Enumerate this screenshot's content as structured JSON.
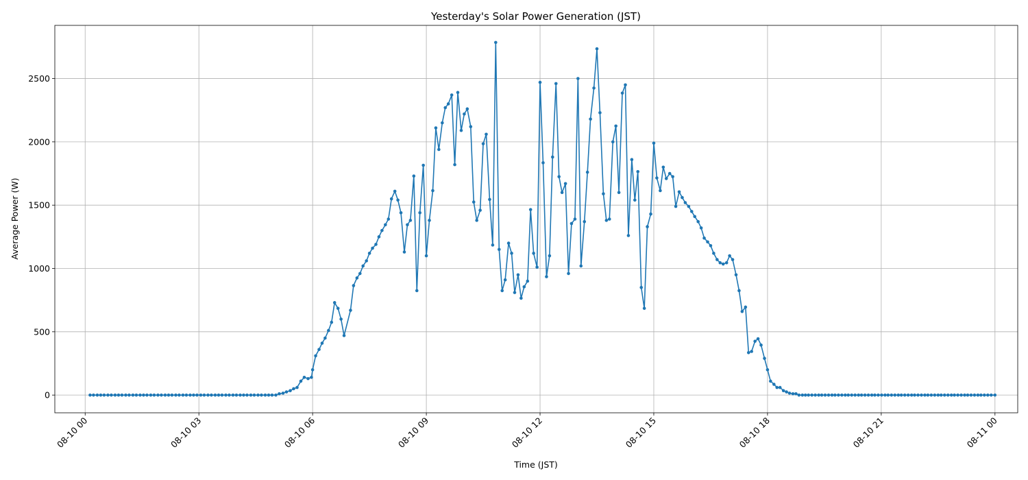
{
  "chart_data": {
    "type": "line",
    "title": "Yesterday's Solar Power Generation (JST)",
    "xlabel": "Time (JST)",
    "ylabel": "Average Power (W)",
    "grid": true,
    "legend": "none",
    "marker": "circle",
    "color": "#1f77b4",
    "x_unit": "hours since 08-10 00:00",
    "xlim": [
      -0.8,
      24.6
    ],
    "ylim": [
      -140,
      2920
    ],
    "x_ticks": [
      0,
      3,
      6,
      9,
      12,
      15,
      18,
      21,
      24
    ],
    "x_tick_labels": [
      "08-10 00",
      "08-10 03",
      "08-10 06",
      "08-10 09",
      "08-10 12",
      "08-10 15",
      "08-10 18",
      "08-10 21",
      "08-11 00"
    ],
    "y_ticks": [
      0,
      500,
      1000,
      1500,
      2000,
      2500
    ],
    "y_tick_labels": [
      "0",
      "500",
      "1000",
      "1500",
      "2000",
      "2500"
    ],
    "series": [
      {
        "name": "",
        "points": [
          [
            0.13,
            0
          ],
          [
            0.22,
            0
          ],
          [
            0.32,
            0
          ],
          [
            0.41,
            0
          ],
          [
            0.5,
            0
          ],
          [
            0.6,
            0
          ],
          [
            0.69,
            0
          ],
          [
            0.79,
            0
          ],
          [
            0.88,
            0
          ],
          [
            0.97,
            0
          ],
          [
            1.07,
            0
          ],
          [
            1.16,
            0
          ],
          [
            1.26,
            0
          ],
          [
            1.35,
            0
          ],
          [
            1.45,
            0
          ],
          [
            1.54,
            0
          ],
          [
            1.63,
            0
          ],
          [
            1.73,
            0
          ],
          [
            1.82,
            0
          ],
          [
            1.92,
            0
          ],
          [
            2.01,
            0
          ],
          [
            2.11,
            0
          ],
          [
            2.2,
            0
          ],
          [
            2.29,
            0
          ],
          [
            2.39,
            0
          ],
          [
            2.48,
            0
          ],
          [
            2.58,
            0
          ],
          [
            2.67,
            0
          ],
          [
            2.77,
            0
          ],
          [
            2.86,
            0
          ],
          [
            2.95,
            0
          ],
          [
            3.05,
            0
          ],
          [
            3.14,
            0
          ],
          [
            3.24,
            0
          ],
          [
            3.33,
            0
          ],
          [
            3.43,
            0
          ],
          [
            3.52,
            0
          ],
          [
            3.61,
            0
          ],
          [
            3.71,
            0
          ],
          [
            3.8,
            0
          ],
          [
            3.9,
            0
          ],
          [
            3.99,
            0
          ],
          [
            4.09,
            0
          ],
          [
            4.18,
            0
          ],
          [
            4.27,
            0
          ],
          [
            4.37,
            0
          ],
          [
            4.46,
            0
          ],
          [
            4.56,
            0
          ],
          [
            4.65,
            0
          ],
          [
            4.75,
            0
          ],
          [
            4.84,
            0
          ],
          [
            4.93,
            0
          ],
          [
            5.03,
            0
          ],
          [
            5.12,
            10
          ],
          [
            5.22,
            15
          ],
          [
            5.31,
            25
          ],
          [
            5.41,
            35
          ],
          [
            5.5,
            50
          ],
          [
            5.59,
            60
          ],
          [
            5.69,
            110
          ],
          [
            5.78,
            140
          ],
          [
            5.88,
            130
          ],
          [
            5.97,
            140
          ],
          [
            6.0,
            200
          ],
          [
            6.08,
            310
          ],
          [
            6.17,
            360
          ],
          [
            6.25,
            410
          ],
          [
            6.33,
            450
          ],
          [
            6.42,
            510
          ],
          [
            6.5,
            575
          ],
          [
            6.58,
            730
          ],
          [
            6.67,
            685
          ],
          [
            6.75,
            600
          ],
          [
            6.83,
            470
          ],
          [
            7.0,
            670
          ],
          [
            7.08,
            865
          ],
          [
            7.17,
            925
          ],
          [
            7.25,
            960
          ],
          [
            7.33,
            1020
          ],
          [
            7.42,
            1060
          ],
          [
            7.5,
            1120
          ],
          [
            7.58,
            1160
          ],
          [
            7.67,
            1190
          ],
          [
            7.75,
            1250
          ],
          [
            7.83,
            1300
          ],
          [
            7.92,
            1345
          ],
          [
            8.0,
            1390
          ],
          [
            8.08,
            1550
          ],
          [
            8.17,
            1610
          ],
          [
            8.25,
            1540
          ],
          [
            8.33,
            1440
          ],
          [
            8.42,
            1130
          ],
          [
            8.5,
            1345
          ],
          [
            8.58,
            1380
          ],
          [
            8.67,
            1730
          ],
          [
            8.75,
            825
          ],
          [
            8.83,
            1440
          ],
          [
            8.92,
            1815
          ],
          [
            9.0,
            1100
          ],
          [
            9.08,
            1380
          ],
          [
            9.17,
            1615
          ],
          [
            9.25,
            2110
          ],
          [
            9.33,
            1940
          ],
          [
            9.42,
            2150
          ],
          [
            9.5,
            2270
          ],
          [
            9.58,
            2300
          ],
          [
            9.67,
            2370
          ],
          [
            9.75,
            1820
          ],
          [
            9.83,
            2390
          ],
          [
            9.92,
            2090
          ],
          [
            10.0,
            2220
          ],
          [
            10.08,
            2260
          ],
          [
            10.17,
            2120
          ],
          [
            10.25,
            1525
          ],
          [
            10.33,
            1380
          ],
          [
            10.42,
            1460
          ],
          [
            10.5,
            1985
          ],
          [
            10.58,
            2060
          ],
          [
            10.67,
            1545
          ],
          [
            10.75,
            1185
          ],
          [
            10.83,
            2785
          ],
          [
            10.92,
            1150
          ],
          [
            11.0,
            825
          ],
          [
            11.08,
            910
          ],
          [
            11.17,
            1200
          ],
          [
            11.25,
            1120
          ],
          [
            11.33,
            810
          ],
          [
            11.42,
            950
          ],
          [
            11.5,
            765
          ],
          [
            11.58,
            855
          ],
          [
            11.67,
            900
          ],
          [
            11.75,
            1465
          ],
          [
            11.83,
            1120
          ],
          [
            11.92,
            1010
          ],
          [
            12.0,
            2470
          ],
          [
            12.08,
            1835
          ],
          [
            12.17,
            935
          ],
          [
            12.25,
            1100
          ],
          [
            12.33,
            1880
          ],
          [
            12.42,
            2460
          ],
          [
            12.5,
            1725
          ],
          [
            12.58,
            1600
          ],
          [
            12.67,
            1670
          ],
          [
            12.75,
            960
          ],
          [
            12.83,
            1355
          ],
          [
            12.92,
            1390
          ],
          [
            13.0,
            2500
          ],
          [
            13.08,
            1020
          ],
          [
            13.17,
            1370
          ],
          [
            13.25,
            1760
          ],
          [
            13.33,
            2180
          ],
          [
            13.42,
            2425
          ],
          [
            13.5,
            2735
          ],
          [
            13.58,
            2230
          ],
          [
            13.67,
            1590
          ],
          [
            13.75,
            1380
          ],
          [
            13.83,
            1390
          ],
          [
            13.92,
            2000
          ],
          [
            14.0,
            2125
          ],
          [
            14.08,
            1600
          ],
          [
            14.17,
            2385
          ],
          [
            14.25,
            2450
          ],
          [
            14.33,
            1260
          ],
          [
            14.42,
            1860
          ],
          [
            14.5,
            1540
          ],
          [
            14.58,
            1765
          ],
          [
            14.67,
            850
          ],
          [
            14.75,
            685
          ],
          [
            14.83,
            1330
          ],
          [
            14.92,
            1430
          ],
          [
            15.0,
            1990
          ],
          [
            15.08,
            1715
          ],
          [
            15.17,
            1615
          ],
          [
            15.25,
            1800
          ],
          [
            15.33,
            1710
          ],
          [
            15.42,
            1750
          ],
          [
            15.5,
            1725
          ],
          [
            15.58,
            1490
          ],
          [
            15.67,
            1605
          ],
          [
            15.75,
            1560
          ],
          [
            15.83,
            1520
          ],
          [
            15.92,
            1490
          ],
          [
            16.0,
            1450
          ],
          [
            16.08,
            1410
          ],
          [
            16.17,
            1370
          ],
          [
            16.25,
            1320
          ],
          [
            16.33,
            1240
          ],
          [
            16.42,
            1210
          ],
          [
            16.5,
            1180
          ],
          [
            16.58,
            1120
          ],
          [
            16.67,
            1070
          ],
          [
            16.75,
            1045
          ],
          [
            16.83,
            1035
          ],
          [
            16.92,
            1045
          ],
          [
            17.0,
            1100
          ],
          [
            17.08,
            1070
          ],
          [
            17.17,
            950
          ],
          [
            17.25,
            825
          ],
          [
            17.33,
            660
          ],
          [
            17.42,
            695
          ],
          [
            17.5,
            335
          ],
          [
            17.58,
            345
          ],
          [
            17.67,
            425
          ],
          [
            17.75,
            445
          ],
          [
            17.83,
            395
          ],
          [
            17.92,
            290
          ],
          [
            18.0,
            200
          ],
          [
            18.08,
            110
          ],
          [
            18.17,
            85
          ],
          [
            18.25,
            60
          ],
          [
            18.33,
            60
          ],
          [
            18.42,
            35
          ],
          [
            18.5,
            25
          ],
          [
            18.58,
            15
          ],
          [
            18.67,
            10
          ],
          [
            18.75,
            10
          ],
          [
            18.83,
            0
          ],
          [
            18.92,
            0
          ],
          [
            19.0,
            0
          ],
          [
            19.08,
            0
          ],
          [
            19.17,
            0
          ],
          [
            19.26,
            0
          ],
          [
            19.35,
            0
          ],
          [
            19.43,
            0
          ],
          [
            19.52,
            0
          ],
          [
            19.61,
            0
          ],
          [
            19.7,
            0
          ],
          [
            19.78,
            0
          ],
          [
            19.87,
            0
          ],
          [
            19.96,
            0
          ],
          [
            20.05,
            0
          ],
          [
            20.13,
            0
          ],
          [
            20.22,
            0
          ],
          [
            20.31,
            0
          ],
          [
            20.4,
            0
          ],
          [
            20.48,
            0
          ],
          [
            20.57,
            0
          ],
          [
            20.66,
            0
          ],
          [
            20.75,
            0
          ],
          [
            20.83,
            0
          ],
          [
            20.92,
            0
          ],
          [
            21.01,
            0
          ],
          [
            21.1,
            0
          ],
          [
            21.18,
            0
          ],
          [
            21.27,
            0
          ],
          [
            21.36,
            0
          ],
          [
            21.45,
            0
          ],
          [
            21.53,
            0
          ],
          [
            21.62,
            0
          ],
          [
            21.71,
            0
          ],
          [
            21.8,
            0
          ],
          [
            21.88,
            0
          ],
          [
            21.97,
            0
          ],
          [
            22.06,
            0
          ],
          [
            22.15,
            0
          ],
          [
            22.23,
            0
          ],
          [
            22.32,
            0
          ],
          [
            22.41,
            0
          ],
          [
            22.5,
            0
          ],
          [
            22.58,
            0
          ],
          [
            22.67,
            0
          ],
          [
            22.76,
            0
          ],
          [
            22.85,
            0
          ],
          [
            22.93,
            0
          ],
          [
            23.02,
            0
          ],
          [
            23.11,
            0
          ],
          [
            23.2,
            0
          ],
          [
            23.28,
            0
          ],
          [
            23.37,
            0
          ],
          [
            23.46,
            0
          ],
          [
            23.55,
            0
          ],
          [
            23.63,
            0
          ],
          [
            23.72,
            0
          ],
          [
            23.81,
            0
          ],
          [
            23.9,
            0
          ],
          [
            24.0,
            0
          ]
        ]
      }
    ]
  }
}
